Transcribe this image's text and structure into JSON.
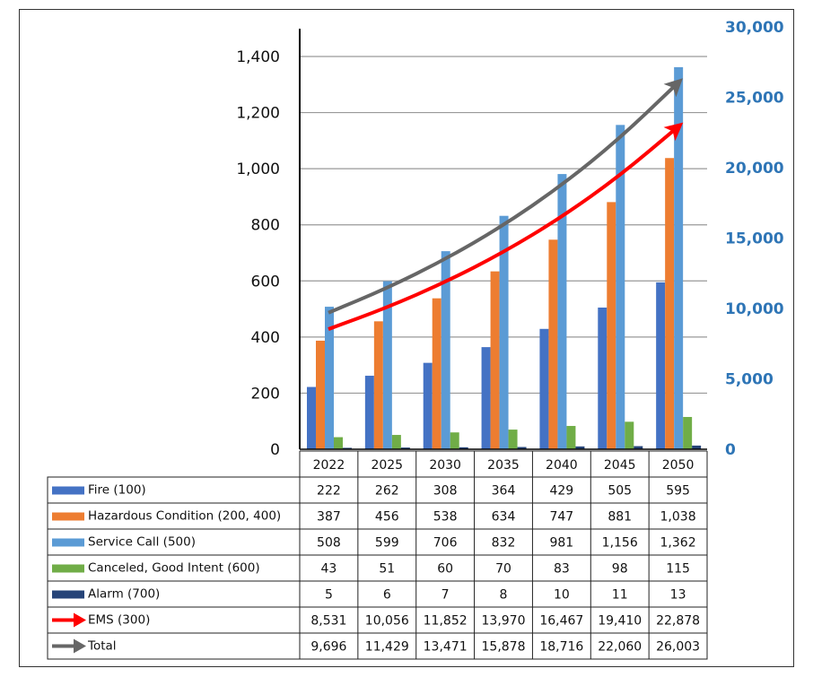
{
  "chart_data": {
    "type": "bar",
    "title": "",
    "categories": [
      "2022",
      "2025",
      "2030",
      "2035",
      "2040",
      "2045",
      "2050"
    ],
    "left_axis": {
      "ylim": [
        0,
        1500
      ],
      "ticks": [
        0,
        200,
        400,
        600,
        800,
        1000,
        1200,
        1400
      ],
      "tick_labels": [
        "0",
        "200",
        "400",
        "600",
        "800",
        "1,000",
        "1,200",
        "1,400"
      ]
    },
    "right_axis": {
      "ylim": [
        0,
        30000
      ],
      "ticks": [
        0,
        5000,
        10000,
        15000,
        20000,
        25000,
        30000
      ],
      "tick_labels": [
        "0",
        "5,000",
        "10,000",
        "15,000",
        "20,000",
        "25,000",
        "30,000"
      ],
      "color": "#2E75B6"
    },
    "grid": true,
    "series": [
      {
        "name": "Fire (100)",
        "type": "bar",
        "axis": "left",
        "color": "#4472C4",
        "values": [
          222,
          262,
          308,
          364,
          429,
          505,
          595
        ],
        "labels": [
          "222",
          "262",
          "308",
          "364",
          "429",
          "505",
          "595"
        ]
      },
      {
        "name": "Hazardous Condition (200, 400)",
        "type": "bar",
        "axis": "left",
        "color": "#ED7D31",
        "values": [
          387,
          456,
          538,
          634,
          747,
          881,
          1038
        ],
        "labels": [
          "387",
          "456",
          "538",
          "634",
          "747",
          "881",
          "1,038"
        ]
      },
      {
        "name": "Service Call (500)",
        "type": "bar",
        "axis": "left",
        "color": "#5B9BD5",
        "values": [
          508,
          599,
          706,
          832,
          981,
          1156,
          1362
        ],
        "labels": [
          "508",
          "599",
          "706",
          "832",
          "981",
          "1,156",
          "1,362"
        ]
      },
      {
        "name": "Canceled, Good Intent (600)",
        "type": "bar",
        "axis": "left",
        "color": "#70AD47",
        "values": [
          43,
          51,
          60,
          70,
          83,
          98,
          115
        ],
        "labels": [
          "43",
          "51",
          "60",
          "70",
          "83",
          "98",
          "115"
        ]
      },
      {
        "name": "Alarm (700)",
        "type": "bar",
        "axis": "left",
        "color": "#264478",
        "values": [
          5,
          6,
          7,
          8,
          10,
          11,
          13
        ],
        "labels": [
          "5",
          "6",
          "7",
          "8",
          "10",
          "11",
          "13"
        ]
      },
      {
        "name": "EMS (300)",
        "type": "line",
        "axis": "right",
        "color": "#FF0000",
        "values": [
          8531,
          10056,
          11852,
          13970,
          16467,
          19410,
          22878
        ],
        "labels": [
          "8,531",
          "10,056",
          "11,852",
          "13,970",
          "16,467",
          "19,410",
          "22,878"
        ]
      },
      {
        "name": "Total",
        "type": "line",
        "axis": "right",
        "color": "#666666",
        "values": [
          9696,
          11429,
          13471,
          15878,
          18716,
          22060,
          26003
        ],
        "labels": [
          "9,696",
          "11,429",
          "13,471",
          "15,878",
          "18,716",
          "22,060",
          "26,003"
        ]
      }
    ],
    "legend": "data-table-below"
  }
}
